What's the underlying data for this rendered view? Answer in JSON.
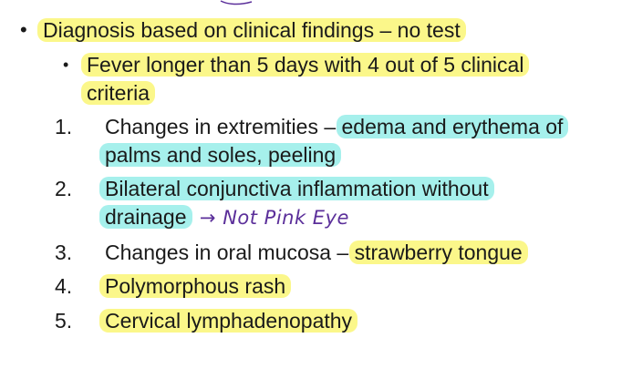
{
  "main_bullet": {
    "text_before": "Diagnosis based on clinical findings ",
    "dash": "–",
    "text_after": " no test"
  },
  "sub_bullet": {
    "line1": "Fever longer than 5 days with 4 out of 5 clinical",
    "line2": "criteria"
  },
  "criteria": [
    {
      "number": "1.",
      "plain": "Changes in extremities – ",
      "highlight_line1": "edema and erythema of",
      "highlight_line2": "palms and soles, peeling"
    },
    {
      "number": "2.",
      "highlight_line1": "Bilateral conjunctiva inflammation without",
      "highlight_line2": "drainage",
      "annotation": "→ Not Pink Eye"
    },
    {
      "number": "3.",
      "plain": "Changes in oral mucosa – ",
      "highlight": "strawberry tongue"
    },
    {
      "number": "4.",
      "highlight": "Polymorphous rash"
    },
    {
      "number": "5.",
      "highlight": "Cervical lymphadenopathy"
    }
  ],
  "colors": {
    "highlight_yellow": "#fbf78a",
    "highlight_cyan": "#a6f0ec",
    "ink_purple": "#5b2f9a",
    "text": "#1a1a1a"
  }
}
